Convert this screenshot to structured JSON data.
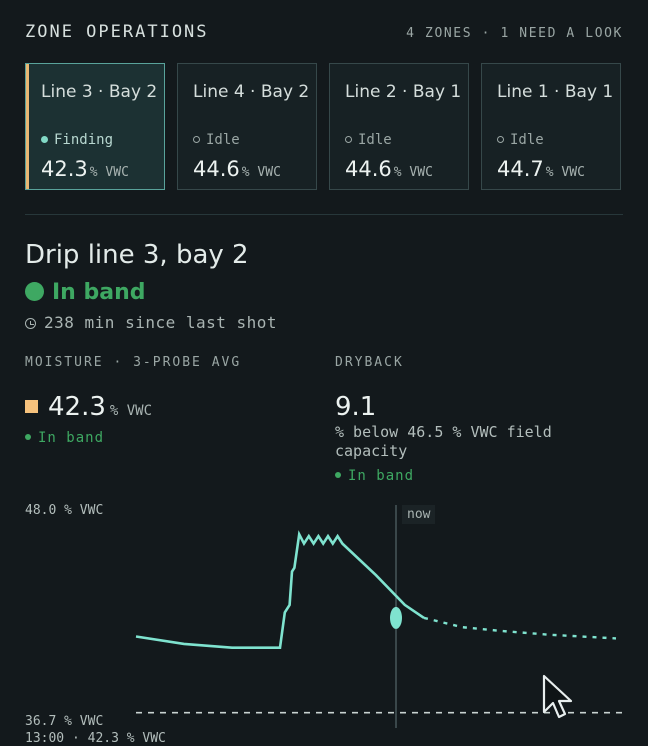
{
  "header": {
    "title": "ZONE OPERATIONS",
    "summary": "4 ZONES · 1 NEED A LOOK"
  },
  "zones": [
    {
      "name": "Line 3 · Bay 2",
      "status": "Finding",
      "value": "42.3",
      "unit": "% VWC",
      "selected": true
    },
    {
      "name": "Line 4 · Bay 2",
      "status": "Idle",
      "value": "44.6",
      "unit": "% VWC",
      "selected": false
    },
    {
      "name": "Line 2 · Bay 1",
      "status": "Idle",
      "value": "44.6",
      "unit": "% VWC",
      "selected": false
    },
    {
      "name": "Line 1 · Bay 1",
      "status": "Idle",
      "value": "44.7",
      "unit": "% VWC",
      "selected": false
    }
  ],
  "detail": {
    "title": "Drip line 3, bay 2",
    "band_status": "In band",
    "since_last_shot": "238 min since last shot",
    "moisture": {
      "label": "MOISTURE · 3-PROBE AVG",
      "value": "42.3",
      "unit": "% VWC",
      "status": "In band",
      "swatch_color": "#f6c27d"
    },
    "dryback": {
      "label": "DRYBACK",
      "value": "9.1",
      "description": "% below 46.5 % VWC field capacity",
      "status": "In band"
    }
  },
  "chart_data": {
    "type": "line",
    "y_top_label": "48.0 % VWC",
    "y_bottom_label": "36.7 % VWC",
    "ylim": [
      36.7,
      48.0
    ],
    "now_label": "now",
    "readout": "13:00 · 42.3 % VWC",
    "observed": {
      "color": "#7fe3cf",
      "points": [
        [
          0,
          41.3
        ],
        [
          1,
          40.9
        ],
        [
          2,
          40.7
        ],
        [
          3,
          40.7
        ],
        [
          3.1,
          42.6
        ],
        [
          3.2,
          43.0
        ],
        [
          3.25,
          44.8
        ],
        [
          3.3,
          45.0
        ],
        [
          3.4,
          46.8
        ],
        [
          3.5,
          46.3
        ],
        [
          3.6,
          46.7
        ],
        [
          3.7,
          46.3
        ],
        [
          3.8,
          46.7
        ],
        [
          3.9,
          46.3
        ],
        [
          4.0,
          46.7
        ],
        [
          4.1,
          46.3
        ],
        [
          4.2,
          46.7
        ],
        [
          4.3,
          46.3
        ],
        [
          5.0,
          44.6
        ],
        [
          5.6,
          43.0
        ],
        [
          6.0,
          42.3
        ]
      ],
      "now_value": 42.3
    },
    "forecast": {
      "style": "dotted",
      "points": [
        [
          6.0,
          42.3
        ],
        [
          6.8,
          41.8
        ],
        [
          7.6,
          41.6
        ],
        [
          8.6,
          41.4
        ],
        [
          10.0,
          41.2
        ]
      ]
    },
    "threshold": {
      "value": 37.2,
      "style": "dashed"
    }
  }
}
